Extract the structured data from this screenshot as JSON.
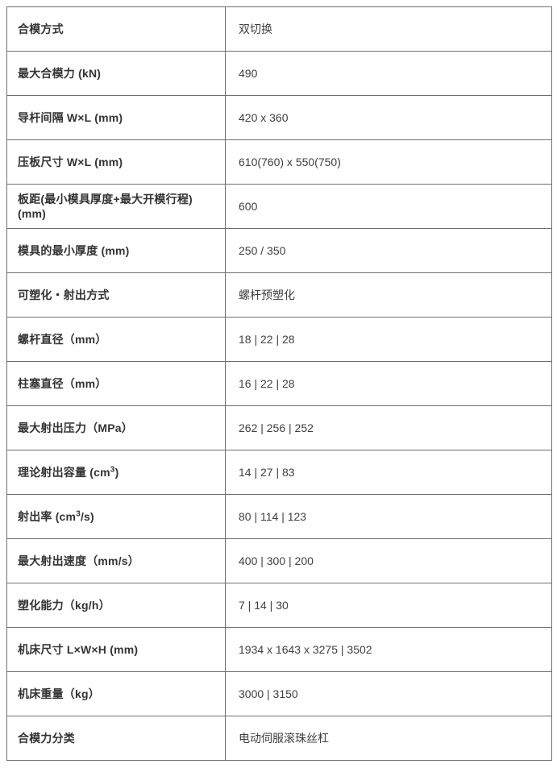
{
  "table": {
    "colors": {
      "border": "#6e6e6e",
      "label_text": "#333333",
      "value_text": "#3f3f3f",
      "background": "#ffffff"
    },
    "rows": [
      {
        "label": "合模方式",
        "value": "双切换"
      },
      {
        "label": "最大合模力 (kN)",
        "value": "490"
      },
      {
        "label": "导杆间隔 W×L (mm)",
        "value": "420 x 360"
      },
      {
        "label": "压板尺寸 W×L (mm)",
        "value": "610(760) x 550(750)"
      },
      {
        "label": "板距(最小模具厚度+最大开模行程) (mm)",
        "value": "600"
      },
      {
        "label": "模具的最小厚度 (mm)",
        "value": "250 / 350"
      },
      {
        "label": "可塑化・射出方式",
        "value": "螺杆预塑化"
      },
      {
        "label": "螺杆直径（mm）",
        "value": "18 | 22 | 28"
      },
      {
        "label": "柱塞直径（mm）",
        "value": "16 | 22 | 28"
      },
      {
        "label": "最大射出压力（MPa）",
        "value": "262 | 256 | 252"
      },
      {
        "label_pre": "理论射出容量 (cm",
        "label_sup": "3",
        "label_post": ")",
        "value": "14 | 27 | 83"
      },
      {
        "label_pre": "射出率 (cm",
        "label_sup": "3",
        "label_post": "/s)",
        "value": "80 | 114 | 123"
      },
      {
        "label": "最大射出速度（mm/s）",
        "value": "400 | 300 | 200"
      },
      {
        "label": "塑化能力（kg/h）",
        "value": "7 | 14 | 30"
      },
      {
        "label": "机床尺寸 L×W×H (mm)",
        "value": "1934 x 1643 x 3275 | 3502"
      },
      {
        "label": "机床重量（kg）",
        "value": "3000 | 3150"
      },
      {
        "label": "合模力分类",
        "value": "电动伺服滚珠丝杠"
      }
    ]
  }
}
